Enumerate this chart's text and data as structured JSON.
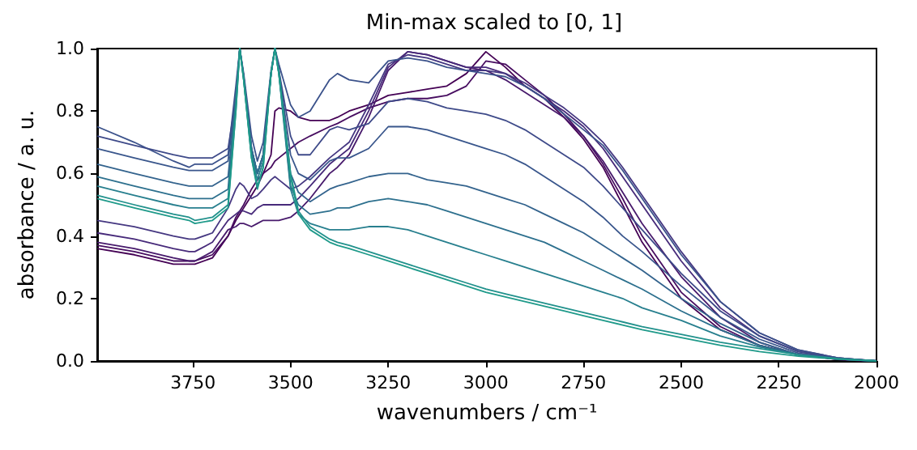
{
  "chart_data": {
    "type": "line",
    "title": "Min-max scaled to [0, 1]",
    "xlabel": "wavenumbers / cm⁻¹",
    "ylabel": "absorbance / a. u.",
    "x": [
      3995,
      3900,
      3800,
      3760,
      3745,
      3700,
      3660,
      3640,
      3630,
      3620,
      3600,
      3585,
      3570,
      3550,
      3540,
      3530,
      3500,
      3480,
      3450,
      3400,
      3380,
      3350,
      3300,
      3250,
      3200,
      3150,
      3100,
      3050,
      3000,
      2950,
      2900,
      2850,
      2800,
      2750,
      2700,
      2650,
      2600,
      2500,
      2400,
      2300,
      2200,
      2100,
      2050,
      2000
    ],
    "xlim": [
      3995,
      2000
    ],
    "xticks": [
      3750,
      3500,
      3250,
      3000,
      2750,
      2500,
      2250,
      2000
    ],
    "ylim": [
      0,
      1
    ],
    "yticks": [
      {
        "value": 0,
        "label": "0.0"
      },
      {
        "value": 0.2,
        "label": "0.2"
      },
      {
        "value": 0.4,
        "label": "0.4"
      },
      {
        "value": 0.6,
        "label": "0.6"
      },
      {
        "value": 0.8,
        "label": "0.8"
      },
      {
        "value": 1,
        "label": "1.0"
      }
    ],
    "marker": "none",
    "line_style": "solid",
    "series": [
      {
        "color": "#440154",
        "values": [
          0.36,
          0.34,
          0.31,
          0.31,
          0.31,
          0.33,
          0.4,
          0.45,
          0.47,
          0.49,
          0.53,
          0.56,
          0.6,
          0.66,
          0.8,
          0.81,
          0.8,
          0.78,
          0.77,
          0.77,
          0.78,
          0.8,
          0.82,
          0.85,
          0.86,
          0.87,
          0.88,
          0.92,
          0.99,
          0.94,
          0.88,
          0.84,
          0.78,
          0.71,
          0.62,
          0.5,
          0.38,
          0.2,
          0.1,
          0.05,
          0.02,
          0.005,
          0.002,
          0
        ]
      },
      {
        "color": "#470d60",
        "values": [
          0.37,
          0.35,
          0.32,
          0.32,
          0.32,
          0.34,
          0.4,
          0.46,
          0.48,
          0.5,
          0.55,
          0.58,
          0.6,
          0.62,
          0.64,
          0.65,
          0.68,
          0.7,
          0.72,
          0.75,
          0.76,
          0.78,
          0.81,
          0.83,
          0.84,
          0.84,
          0.85,
          0.88,
          0.96,
          0.95,
          0.9,
          0.85,
          0.79,
          0.72,
          0.63,
          0.52,
          0.4,
          0.22,
          0.11,
          0.05,
          0.02,
          0.005,
          0.002,
          0
        ]
      },
      {
        "color": "#481a6c",
        "values": [
          0.38,
          0.36,
          0.33,
          0.32,
          0.32,
          0.35,
          0.42,
          0.43,
          0.44,
          0.44,
          0.43,
          0.44,
          0.45,
          0.45,
          0.45,
          0.45,
          0.46,
          0.48,
          0.52,
          0.6,
          0.62,
          0.66,
          0.78,
          0.93,
          0.99,
          0.98,
          0.96,
          0.94,
          0.93,
          0.9,
          0.86,
          0.82,
          0.78,
          0.72,
          0.64,
          0.54,
          0.44,
          0.27,
          0.14,
          0.06,
          0.02,
          0.006,
          0.003,
          0
        ]
      },
      {
        "color": "#472a7a",
        "values": [
          0.41,
          0.39,
          0.36,
          0.35,
          0.35,
          0.38,
          0.45,
          0.47,
          0.48,
          0.48,
          0.47,
          0.49,
          0.5,
          0.5,
          0.5,
          0.5,
          0.5,
          0.52,
          0.56,
          0.63,
          0.65,
          0.68,
          0.8,
          0.94,
          0.99,
          0.98,
          0.96,
          0.94,
          0.94,
          0.92,
          0.88,
          0.84,
          0.8,
          0.75,
          0.68,
          0.59,
          0.5,
          0.32,
          0.17,
          0.08,
          0.03,
          0.008,
          0.004,
          0
        ]
      },
      {
        "color": "#453781",
        "values": [
          0.45,
          0.43,
          0.4,
          0.39,
          0.39,
          0.41,
          0.49,
          0.55,
          0.57,
          0.56,
          0.52,
          0.53,
          0.55,
          0.58,
          0.59,
          0.58,
          0.55,
          0.56,
          0.59,
          0.65,
          0.67,
          0.7,
          0.82,
          0.95,
          0.98,
          0.97,
          0.95,
          0.93,
          0.93,
          0.92,
          0.89,
          0.85,
          0.81,
          0.76,
          0.7,
          0.62,
          0.53,
          0.35,
          0.19,
          0.09,
          0.035,
          0.01,
          0.005,
          0
        ]
      },
      {
        "color": "#3b528b",
        "values": [
          0.75,
          0.7,
          0.64,
          0.62,
          0.63,
          0.63,
          0.66,
          0.88,
          1.0,
          0.92,
          0.72,
          0.64,
          0.7,
          0.93,
          1.0,
          0.95,
          0.82,
          0.78,
          0.8,
          0.9,
          0.92,
          0.9,
          0.89,
          0.96,
          0.97,
          0.96,
          0.94,
          0.93,
          0.92,
          0.91,
          0.88,
          0.84,
          0.79,
          0.74,
          0.69,
          0.61,
          0.52,
          0.34,
          0.19,
          0.09,
          0.035,
          0.01,
          0.005,
          0
        ]
      },
      {
        "color": "#3e4a89",
        "values": [
          0.72,
          0.69,
          0.66,
          0.65,
          0.65,
          0.65,
          0.68,
          0.84,
          1.0,
          0.91,
          0.68,
          0.6,
          0.66,
          0.92,
          1.0,
          0.93,
          0.72,
          0.66,
          0.66,
          0.74,
          0.75,
          0.74,
          0.76,
          0.83,
          0.84,
          0.83,
          0.81,
          0.8,
          0.79,
          0.77,
          0.74,
          0.7,
          0.66,
          0.62,
          0.56,
          0.49,
          0.42,
          0.28,
          0.16,
          0.08,
          0.03,
          0.01,
          0.005,
          0
        ]
      },
      {
        "color": "#39568c",
        "values": [
          0.68,
          0.65,
          0.62,
          0.61,
          0.61,
          0.61,
          0.64,
          0.84,
          1.0,
          0.91,
          0.68,
          0.6,
          0.66,
          0.92,
          1.0,
          0.93,
          0.66,
          0.6,
          0.58,
          0.64,
          0.65,
          0.65,
          0.68,
          0.75,
          0.75,
          0.74,
          0.72,
          0.7,
          0.68,
          0.66,
          0.63,
          0.59,
          0.55,
          0.51,
          0.46,
          0.4,
          0.35,
          0.24,
          0.14,
          0.07,
          0.025,
          0.008,
          0.004,
          0
        ]
      },
      {
        "color": "#33638d",
        "values": [
          0.63,
          0.6,
          0.57,
          0.56,
          0.56,
          0.56,
          0.59,
          0.84,
          1.0,
          0.91,
          0.68,
          0.6,
          0.66,
          0.92,
          1.0,
          0.93,
          0.6,
          0.54,
          0.51,
          0.55,
          0.56,
          0.57,
          0.59,
          0.6,
          0.6,
          0.58,
          0.57,
          0.56,
          0.54,
          0.52,
          0.5,
          0.47,
          0.44,
          0.41,
          0.37,
          0.33,
          0.29,
          0.2,
          0.12,
          0.06,
          0.02,
          0.006,
          0.003,
          0
        ]
      },
      {
        "color": "#2d708e",
        "values": [
          0.59,
          0.56,
          0.53,
          0.52,
          0.52,
          0.52,
          0.55,
          0.84,
          1.0,
          0.91,
          0.68,
          0.6,
          0.66,
          0.92,
          1.0,
          0.93,
          0.56,
          0.5,
          0.47,
          0.48,
          0.49,
          0.49,
          0.51,
          0.52,
          0.51,
          0.5,
          0.48,
          0.46,
          0.44,
          0.42,
          0.4,
          0.38,
          0.35,
          0.32,
          0.29,
          0.26,
          0.23,
          0.16,
          0.1,
          0.05,
          0.02,
          0.006,
          0.003,
          0
        ]
      },
      {
        "color": "#277f8e",
        "values": [
          0.56,
          0.53,
          0.5,
          0.49,
          0.49,
          0.49,
          0.52,
          0.82,
          1.0,
          0.9,
          0.66,
          0.58,
          0.64,
          0.92,
          1.0,
          0.92,
          0.55,
          0.47,
          0.44,
          0.42,
          0.42,
          0.42,
          0.43,
          0.43,
          0.42,
          0.4,
          0.38,
          0.36,
          0.34,
          0.32,
          0.3,
          0.28,
          0.26,
          0.24,
          0.22,
          0.2,
          0.17,
          0.13,
          0.08,
          0.045,
          0.02,
          0.006,
          0.003,
          0
        ]
      },
      {
        "color": "#21918c",
        "values": [
          0.53,
          0.5,
          0.47,
          0.46,
          0.45,
          0.46,
          0.5,
          0.8,
          1.0,
          0.9,
          0.65,
          0.56,
          0.62,
          0.92,
          1.0,
          0.92,
          0.6,
          0.48,
          0.43,
          0.39,
          0.38,
          0.37,
          0.35,
          0.33,
          0.31,
          0.29,
          0.27,
          0.25,
          0.23,
          0.215,
          0.2,
          0.185,
          0.17,
          0.155,
          0.14,
          0.125,
          0.11,
          0.085,
          0.06,
          0.04,
          0.02,
          0.008,
          0.004,
          0
        ]
      },
      {
        "color": "#1f9a8a",
        "values": [
          0.52,
          0.49,
          0.46,
          0.45,
          0.44,
          0.45,
          0.49,
          0.8,
          1.0,
          0.9,
          0.65,
          0.55,
          0.62,
          0.92,
          1.0,
          0.92,
          0.59,
          0.47,
          0.42,
          0.38,
          0.37,
          0.36,
          0.34,
          0.32,
          0.3,
          0.28,
          0.26,
          0.24,
          0.22,
          0.205,
          0.19,
          0.175,
          0.16,
          0.145,
          0.13,
          0.115,
          0.1,
          0.075,
          0.05,
          0.03,
          0.015,
          0.006,
          0.003,
          0
        ]
      }
    ]
  }
}
